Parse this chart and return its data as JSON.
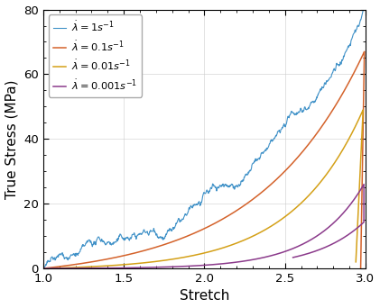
{
  "xlabel": "Stretch",
  "ylabel": "True Stress (MPa)",
  "xlim": [
    1.0,
    3.0
  ],
  "ylim": [
    0,
    80
  ],
  "xticks": [
    1.0,
    1.5,
    2.0,
    2.5,
    3.0
  ],
  "yticks": [
    0,
    20,
    40,
    60,
    80
  ],
  "colors": {
    "rate1": "#4192c8",
    "rate01": "#d4622a",
    "rate001": "#d4a017",
    "rate0001": "#8b3a8b"
  },
  "legend_labels": [
    "$\\dot{\\lambda} = 1s^{-1}$",
    "$\\dot{\\lambda} = 0.1s^{-1}$",
    "$\\dot{\\lambda} = 0.01s^{-1}$",
    "$\\dot{\\lambda} = 0.001s^{-1}$"
  ],
  "noise_seed": 42,
  "background_color": "#ffffff",
  "grid_color": "#cccccc"
}
